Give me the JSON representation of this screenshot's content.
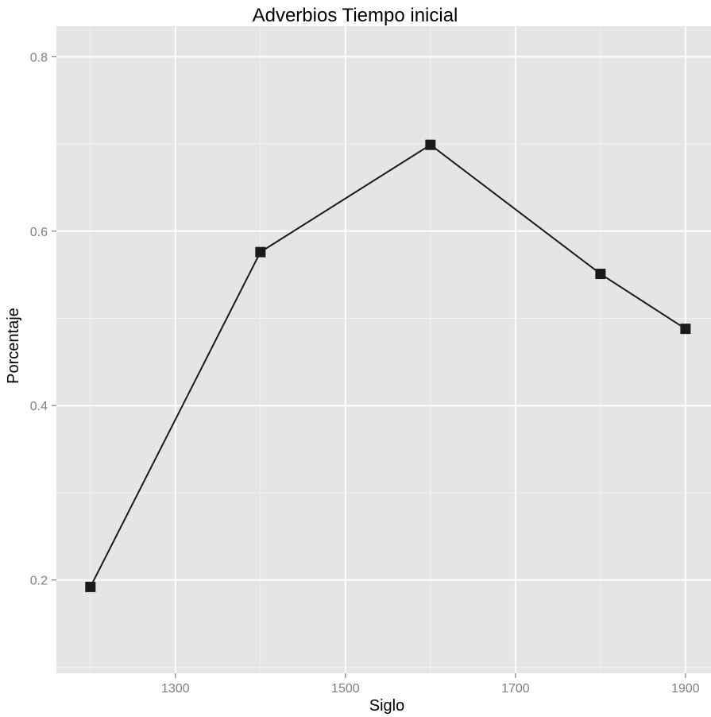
{
  "chart_data": {
    "type": "line",
    "title": "Adverbios Tiempo inicial",
    "xlabel": "Siglo",
    "ylabel": "Porcentaje",
    "x": [
      1200,
      1400,
      1600,
      1800,
      1900
    ],
    "series": [
      {
        "values": [
          0.192,
          0.576,
          0.699,
          0.551,
          0.488
        ]
      }
    ],
    "xlim": [
      1160,
      1930
    ],
    "ylim": [
      0.093,
      0.835
    ],
    "x_ticks": [
      1300,
      1500,
      1700,
      1900
    ],
    "x_tick_labels": [
      "1300",
      "1500",
      "1700",
      "1900"
    ],
    "y_ticks": [
      0.2,
      0.4,
      0.6,
      0.8
    ],
    "y_tick_labels": [
      "0.2",
      "0.4",
      "0.6",
      "0.8"
    ],
    "x_minor_ticks": [
      1200,
      1400,
      1600,
      1800
    ],
    "y_minor_ticks": [
      0.1,
      0.3,
      0.5,
      0.7
    ],
    "grid": true,
    "marker": "square",
    "colors": {
      "panel": "#e5e5e5",
      "grid": "#ffffff",
      "line": "#1a1a1a",
      "tick_text": "#7f7f7f"
    }
  }
}
